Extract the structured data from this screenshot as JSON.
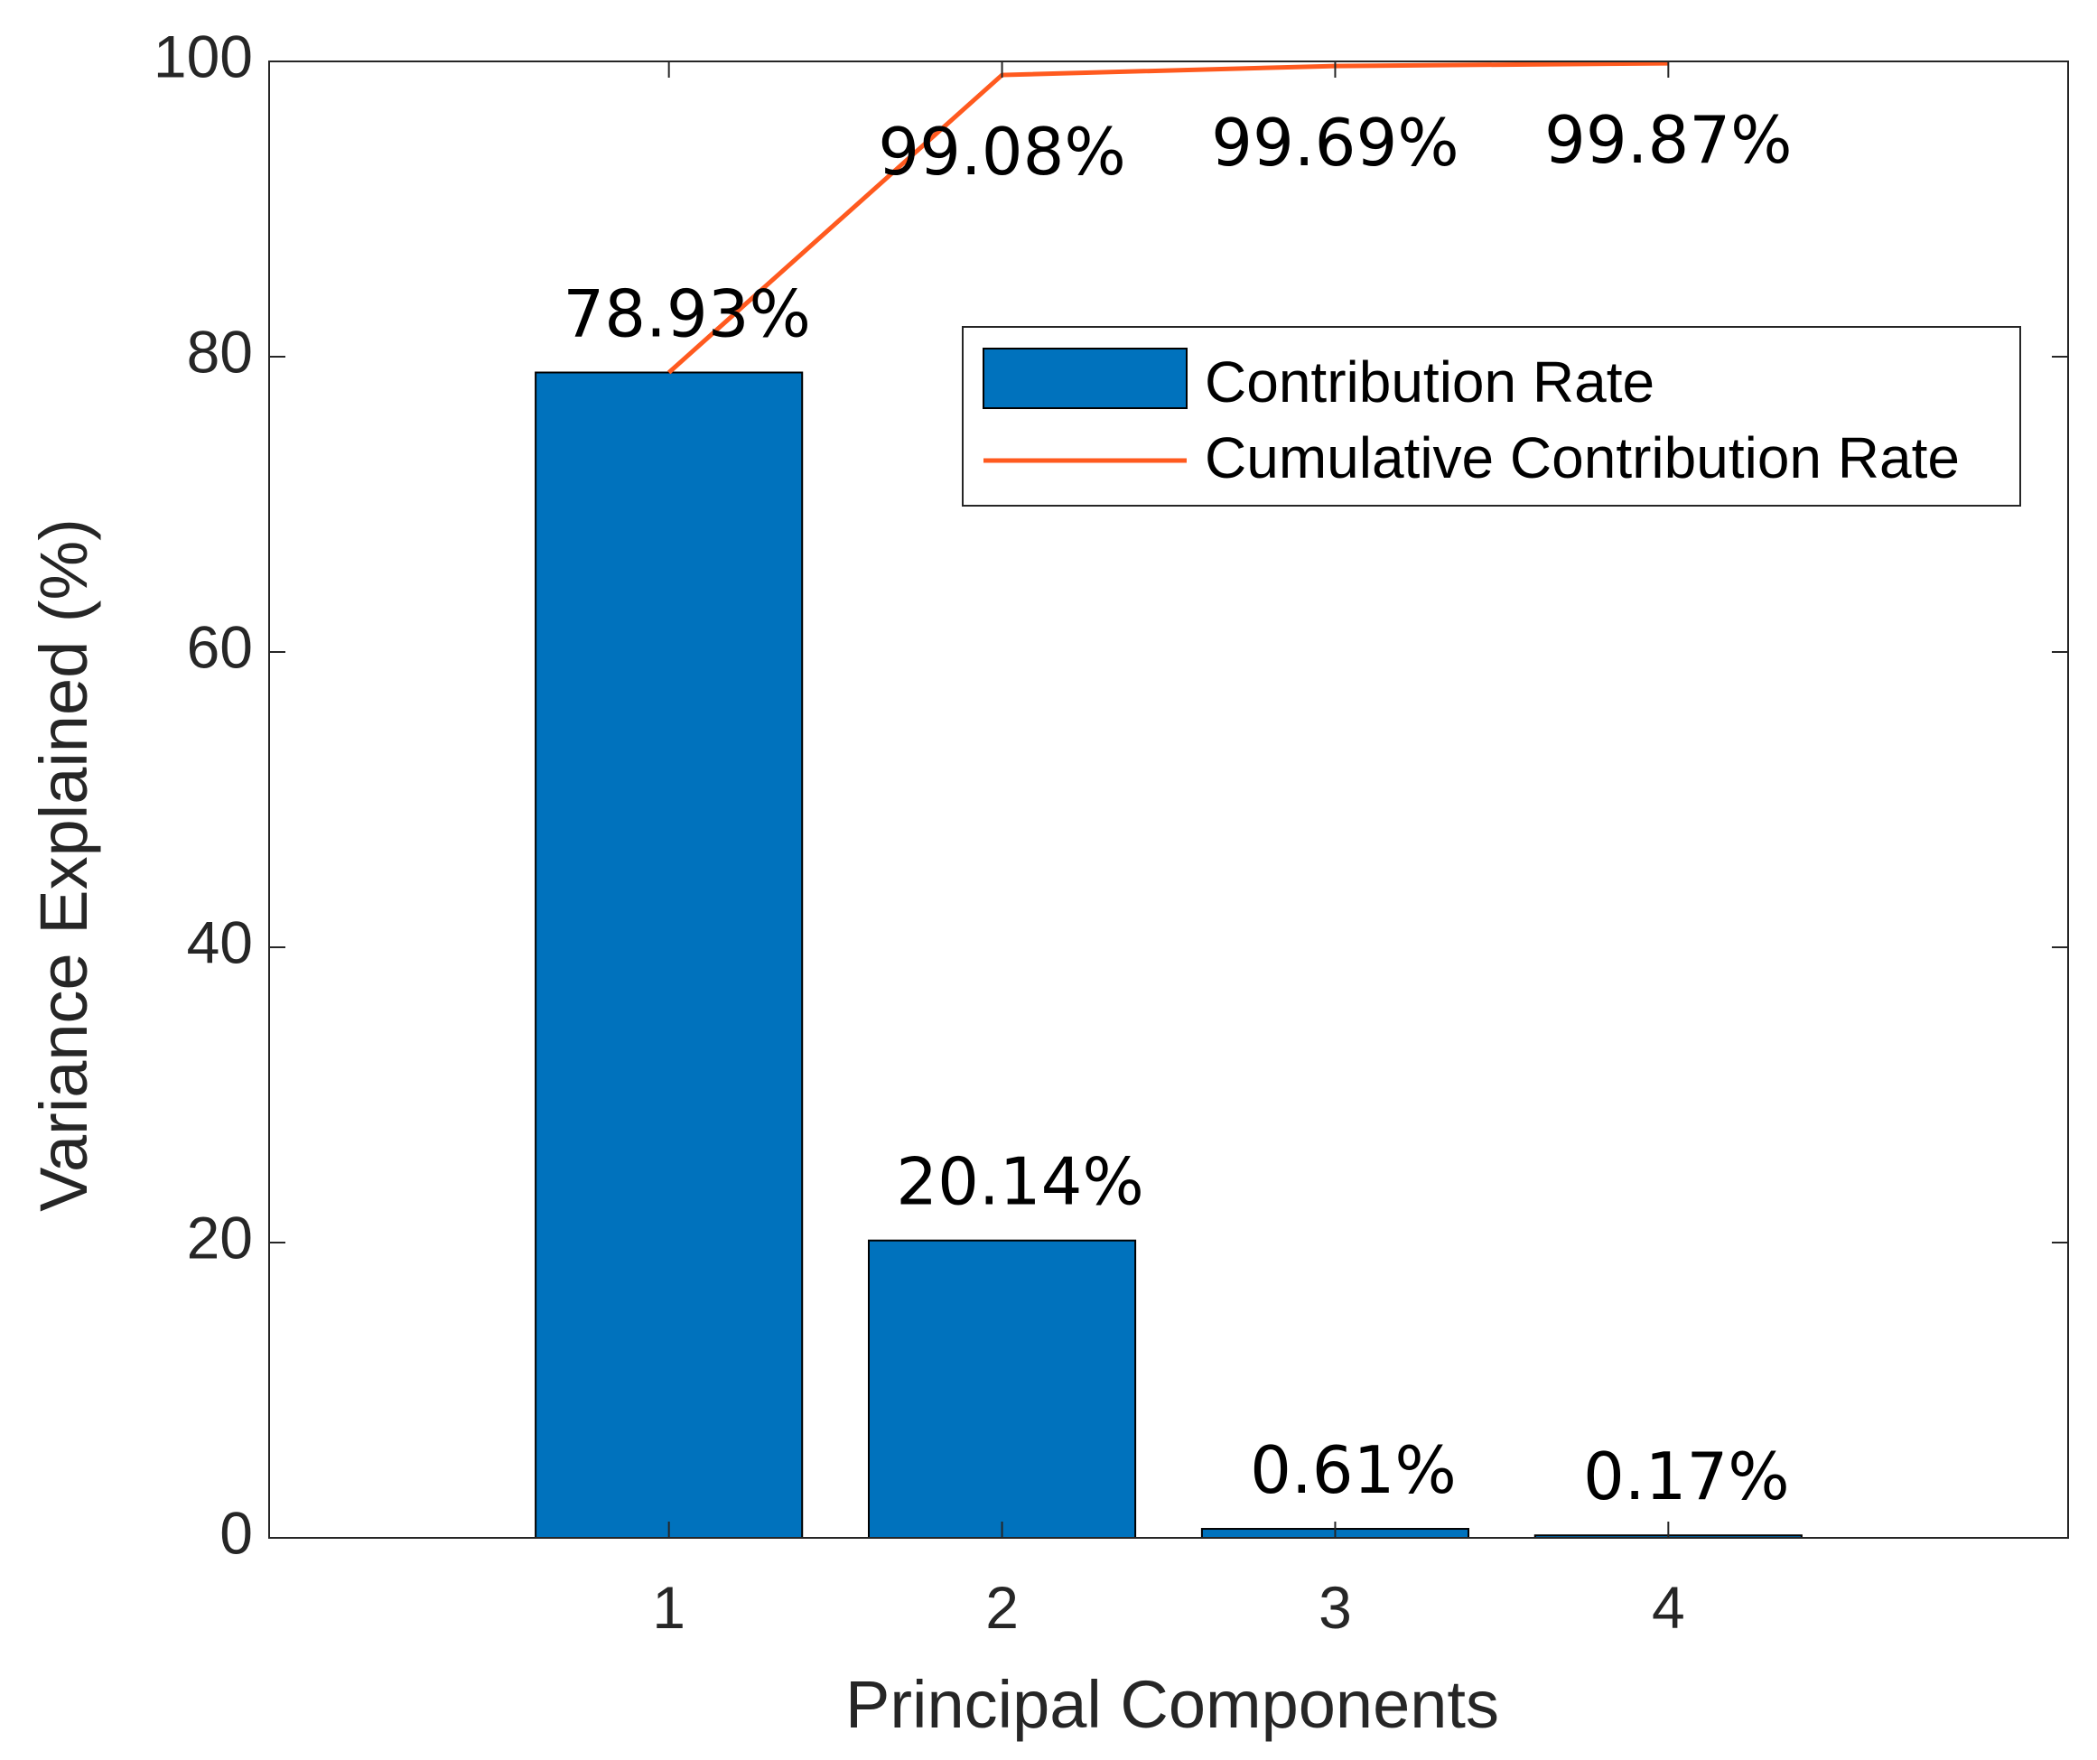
{
  "chart_data": {
    "type": "bar",
    "categories": [
      "1",
      "2",
      "3",
      "4"
    ],
    "series": [
      {
        "name": "Contribution Rate",
        "kind": "bar",
        "values": [
          78.93,
          20.14,
          0.61,
          0.17
        ],
        "labels": [
          "78.93%",
          "20.14%",
          "0.61%",
          "0.17%"
        ],
        "color": "#0072BD"
      },
      {
        "name": "Cumulative Contribution Rate",
        "kind": "line",
        "values": [
          78.93,
          99.08,
          99.69,
          99.87
        ],
        "labels": [
          "",
          "99.08%",
          "99.69%",
          "99.87%"
        ],
        "color": "#FF5A1F"
      }
    ],
    "title": "",
    "xlabel": "Principal Components",
    "ylabel": "Variance Explained (%)",
    "xlim": [
      -0.2,
      5.2
    ],
    "ylim": [
      0,
      100
    ],
    "yticks": [
      0,
      20,
      40,
      60,
      80,
      100
    ],
    "ytick_labels": [
      "0",
      "20",
      "40",
      "60",
      "80",
      "100"
    ],
    "grid": false,
    "legend_position": "top-right"
  }
}
